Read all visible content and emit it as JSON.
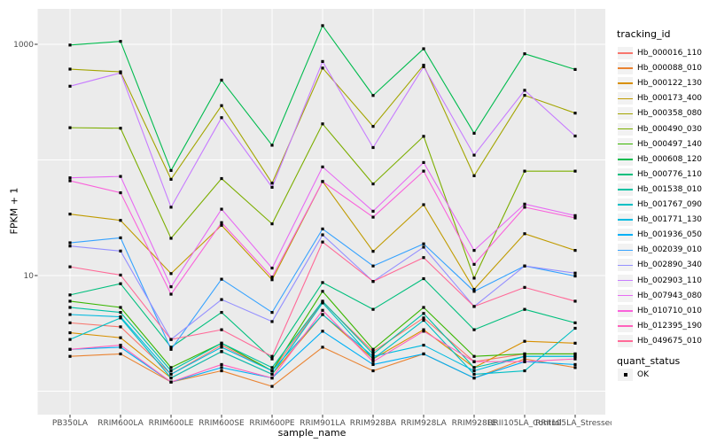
{
  "chart_data": {
    "type": "line",
    "title": "",
    "xlabel": "sample_name",
    "ylabel": "FPKM + 1",
    "y_scale": "log10",
    "grid": true,
    "legend_position": "right",
    "y_axis_ticks": [
      {
        "label": "1000",
        "value": 1000
      },
      {
        "label": "10",
        "value": 10
      }
    ],
    "y_gridline_values": [
      1000,
      100,
      10,
      1
    ],
    "categories": [
      "PB350LA",
      "RRIM600LA",
      "RRIM600LE",
      "RRIM600SE",
      "RRIM600PE",
      "RRIM901LA",
      "RRIM928BA",
      "RRIM928LA",
      "RRIM928LE",
      "RRII105LA_Control",
      "RRII105LA_Stressed"
    ],
    "legend_title": "tracking_id",
    "quant_legend": {
      "title": "quant_status",
      "items": [
        {
          "label": "OK"
        }
      ]
    },
    "series": [
      {
        "name": "Hb_000016_110",
        "color": "#F8766D",
        "values": [
          3.9,
          3.6,
          1.4,
          2.5,
          1.5,
          5.9,
          2.2,
          4.3,
          1.8,
          2.1,
          2.1
        ]
      },
      {
        "name": "Hb_000088_010",
        "color": "#EA8331",
        "values": [
          2.0,
          2.1,
          1.2,
          1.5,
          1.1,
          2.4,
          1.5,
          2.1,
          1.3,
          1.9,
          1.6
        ]
      },
      {
        "name": "Hb_000122_130",
        "color": "#D89000",
        "values": [
          3.2,
          2.9,
          1.3,
          2.2,
          1.4,
          4.6,
          1.9,
          3.4,
          1.6,
          2.7,
          2.6
        ]
      },
      {
        "name": "Hb_000173_400",
        "color": "#C09B00",
        "values": [
          34,
          30,
          10.4,
          27.2,
          9.2,
          65,
          16.2,
          41,
          7.6,
          23,
          16.5
        ]
      },
      {
        "name": "Hb_000358_080",
        "color": "#A3A500",
        "values": [
          610,
          578,
          68,
          295,
          63,
          623,
          195,
          660,
          73,
          362,
          254
        ]
      },
      {
        "name": "Hb_000490_030",
        "color": "#7CAE00",
        "values": [
          190,
          188,
          21,
          69,
          28,
          205,
          62,
          160,
          9.5,
          80,
          80
        ]
      },
      {
        "name": "Hb_000497_140",
        "color": "#39B600",
        "values": [
          6.0,
          5.3,
          1.6,
          2.6,
          1.5,
          7.3,
          2.3,
          5.3,
          2.0,
          2.1,
          2.1
        ]
      },
      {
        "name": "Hb_000608_120",
        "color": "#00BB4E",
        "values": [
          985,
          1060,
          81,
          490,
          134,
          1450,
          361,
          915,
          170,
          828,
          606
        ]
      },
      {
        "name": "Hb_000776_110",
        "color": "#00BF7D",
        "values": [
          6.8,
          8.5,
          2.4,
          4.8,
          1.9,
          8.7,
          5.1,
          9.4,
          3.4,
          5.1,
          3.9
        ]
      },
      {
        "name": "Hb_001538_010",
        "color": "#00C1A3",
        "values": [
          5.3,
          4.8,
          1.5,
          2.6,
          1.6,
          6.0,
          2.1,
          4.7,
          1.6,
          2.0,
          2.0
        ]
      },
      {
        "name": "Hb_001767_090",
        "color": "#00BFC4",
        "values": [
          2.8,
          4.3,
          1.3,
          2.2,
          1.4,
          5.8,
          1.9,
          4.1,
          1.4,
          1.5,
          3.5
        ]
      },
      {
        "name": "Hb_001771_130",
        "color": "#00BAE0",
        "values": [
          4.6,
          4.4,
          1.4,
          2.4,
          1.5,
          4.6,
          2.0,
          2.5,
          1.5,
          2.0,
          2.0
        ]
      },
      {
        "name": "Hb_001936_050",
        "color": "#00B0F6",
        "values": [
          2.3,
          2.4,
          1.2,
          1.6,
          1.3,
          3.3,
          1.7,
          2.1,
          1.3,
          1.8,
          1.7
        ]
      },
      {
        "name": "Hb_002039_010",
        "color": "#35A2FF",
        "values": [
          19.2,
          21.2,
          2.3,
          9.3,
          4.8,
          25.3,
          12.1,
          18.8,
          7.3,
          12.1,
          9.9
        ]
      },
      {
        "name": "Hb_002890_340",
        "color": "#9590FF",
        "values": [
          18.0,
          16.3,
          2.8,
          6.2,
          4.0,
          22.5,
          8.9,
          17.6,
          5.4,
          12.1,
          10.5
        ]
      },
      {
        "name": "Hb_002903_110",
        "color": "#C77CFF",
        "values": [
          434,
          566,
          39,
          232,
          58,
          710,
          128,
          640,
          110,
          400,
          161
        ]
      },
      {
        "name": "Hb_007943_080",
        "color": "#E76BF3",
        "values": [
          70,
          72,
          8.0,
          37.5,
          11.6,
          87,
          36,
          95,
          16.5,
          41.5,
          33
        ]
      },
      {
        "name": "Hb_010710_010",
        "color": "#FA62DB",
        "values": [
          66,
          52,
          6.9,
          28.7,
          9.7,
          65,
          32,
          80,
          12.5,
          39,
          31.5
        ]
      },
      {
        "name": "Hb_012395_190",
        "color": "#FF62BC",
        "values": [
          2.3,
          2.5,
          1.2,
          1.7,
          1.3,
          5.0,
          1.8,
          3.3,
          1.8,
          1.8,
          1.9
        ]
      },
      {
        "name": "Hb_049675_010",
        "color": "#FF6A98",
        "values": [
          11.9,
          10.1,
          2.8,
          3.4,
          2.0,
          19.5,
          8.9,
          14.3,
          5.4,
          7.9,
          6.0
        ]
      }
    ],
    "style": {
      "panel_bg": "#EBEBEB",
      "grid_color": "#FFFFFF",
      "tick_text_color": "#4D4D4D",
      "axis_title_color": "#000000",
      "point_color": "#000000",
      "tick_mark_color": "#333333",
      "legend_key_bg": "#F2F2F2"
    }
  }
}
